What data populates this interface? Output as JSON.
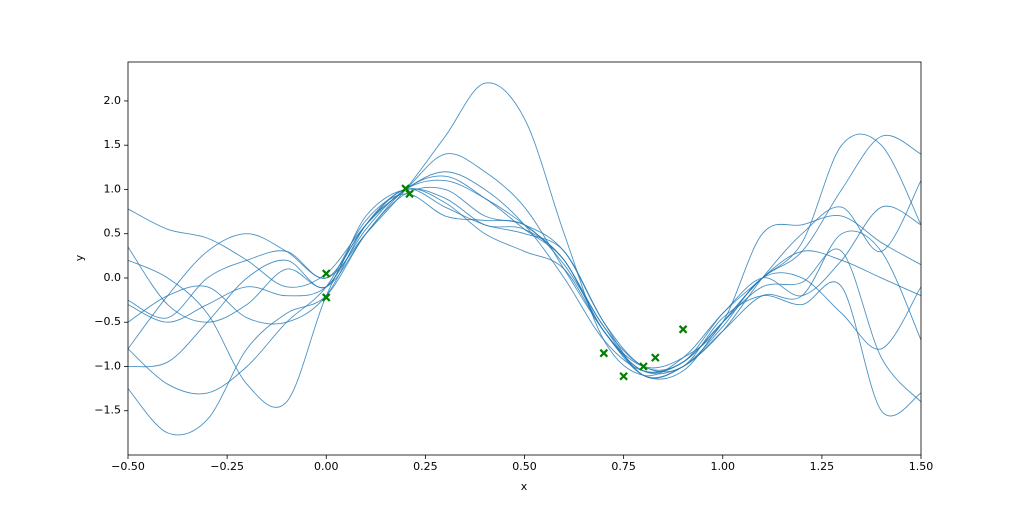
{
  "chart_data": {
    "type": "line",
    "x_label": "x",
    "y_label": "y",
    "x": [
      -0.5,
      -0.4,
      -0.3,
      -0.2,
      -0.1,
      0.0,
      0.1,
      0.2,
      0.3,
      0.4,
      0.5,
      0.6,
      0.7,
      0.8,
      0.9,
      1.0,
      1.1,
      1.2,
      1.3,
      1.4,
      1.5
    ],
    "series": [
      {
        "color": "#1f77b4",
        "values": [
          -0.8,
          -0.2,
          0.3,
          0.5,
          0.3,
          0.0,
          0.5,
          1.0,
          1.6,
          2.2,
          1.8,
          0.5,
          -0.7,
          -1.1,
          -0.9,
          -0.4,
          0.0,
          -0.2,
          0.2,
          0.8,
          0.6
        ]
      },
      {
        "color": "#1f77b4",
        "values": [
          0.78,
          0.55,
          0.45,
          0.2,
          -0.1,
          0.05,
          0.6,
          1.0,
          1.2,
          1.0,
          0.6,
          0.0,
          -0.7,
          -1.05,
          -0.95,
          -0.5,
          0.0,
          0.3,
          1.0,
          1.6,
          1.4
        ]
      },
      {
        "color": "#1f77b4",
        "values": [
          0.35,
          -0.3,
          -0.5,
          -0.3,
          0.1,
          -0.1,
          0.5,
          1.0,
          1.15,
          0.9,
          0.55,
          0.2,
          -0.6,
          -1.05,
          -1.0,
          -0.6,
          -0.2,
          -0.2,
          0.5,
          0.3,
          -0.7
        ]
      },
      {
        "color": "#1f77b4",
        "values": [
          -0.25,
          -0.45,
          0.0,
          0.2,
          0.3,
          0.0,
          0.6,
          1.0,
          0.8,
          0.6,
          0.5,
          0.3,
          -0.5,
          -1.1,
          -1.0,
          -0.55,
          0.0,
          0.0,
          -0.4,
          -0.8,
          -0.1
        ]
      },
      {
        "color": "#1f77b4",
        "values": [
          -1.0,
          -0.95,
          -0.5,
          0.0,
          0.2,
          -0.1,
          0.7,
          1.0,
          0.9,
          0.6,
          0.55,
          0.2,
          -0.6,
          -1.0,
          -0.9,
          -0.5,
          0.5,
          0.6,
          0.7,
          0.4,
          0.15
        ]
      },
      {
        "color": "#1f77b4",
        "values": [
          -1.25,
          -1.75,
          -1.6,
          -0.8,
          -0.4,
          -0.2,
          0.5,
          0.95,
          1.0,
          0.7,
          0.6,
          0.3,
          -0.5,
          -1.0,
          -0.95,
          -0.4,
          0.0,
          0.4,
          1.5,
          1.5,
          0.6
        ]
      },
      {
        "color": "#1f77b4",
        "values": [
          0.2,
          0.0,
          -0.4,
          -1.2,
          -1.4,
          -0.2,
          0.6,
          1.0,
          0.85,
          0.5,
          0.3,
          0.1,
          -0.6,
          -1.05,
          -0.95,
          -0.5,
          -0.1,
          -0.05,
          0.3,
          -0.9,
          -1.4
        ]
      },
      {
        "color": "#1f77b4",
        "values": [
          -0.3,
          -0.5,
          -0.3,
          -0.1,
          -0.2,
          -0.1,
          0.55,
          1.0,
          1.1,
          0.9,
          0.6,
          0.2,
          -0.55,
          -1.0,
          -1.0,
          -0.45,
          -0.2,
          -0.3,
          -0.1,
          -1.5,
          -1.3
        ]
      },
      {
        "color": "#1f77b4",
        "values": [
          -0.5,
          -0.2,
          -0.1,
          -0.45,
          -0.5,
          -0.2,
          0.6,
          1.0,
          1.4,
          1.2,
          0.8,
          0.1,
          -0.6,
          -1.1,
          -1.05,
          -0.5,
          0.0,
          0.3,
          0.2,
          0.0,
          -0.2
        ]
      },
      {
        "color": "#1f77b4",
        "values": [
          -0.8,
          -1.2,
          -1.3,
          -1.0,
          -0.5,
          -0.1,
          0.65,
          0.95,
          0.7,
          0.65,
          0.6,
          0.15,
          -0.55,
          -1.1,
          -1.0,
          -0.6,
          0.0,
          0.5,
          0.8,
          0.3,
          1.1
        ]
      }
    ],
    "points": {
      "color": "#007f00",
      "x": [
        0.0,
        0.0,
        0.2,
        0.21,
        0.7,
        0.75,
        0.8,
        0.83,
        0.9
      ],
      "y": [
        0.05,
        -0.22,
        1.01,
        0.95,
        -0.85,
        -1.11,
        -1.0,
        -0.9,
        -0.58
      ]
    },
    "xlim": [
      -0.5,
      1.5
    ],
    "ylim": [
      -2.0,
      2.44
    ],
    "xticks": [
      {
        "value": -0.5,
        "label": "−0.50"
      },
      {
        "value": -0.25,
        "label": "−0.25"
      },
      {
        "value": 0,
        "label": "0.00"
      },
      {
        "value": 0.25,
        "label": "0.25"
      },
      {
        "value": 0.5,
        "label": "0.50"
      },
      {
        "value": 0.75,
        "label": "0.75"
      },
      {
        "value": 1,
        "label": "1.00"
      },
      {
        "value": 1.25,
        "label": "1.25"
      },
      {
        "value": 1.5,
        "label": "1.50"
      }
    ],
    "yticks": [
      {
        "value": -1.5,
        "label": "−1.5"
      },
      {
        "value": -1,
        "label": "−1.0"
      },
      {
        "value": -0.5,
        "label": "−0.5"
      },
      {
        "value": 0,
        "label": "0.0"
      },
      0.5,
      {
        "value": 1,
        "label": "1.0"
      },
      1.5,
      {
        "value": 2,
        "label": "2.0"
      }
    ]
  }
}
